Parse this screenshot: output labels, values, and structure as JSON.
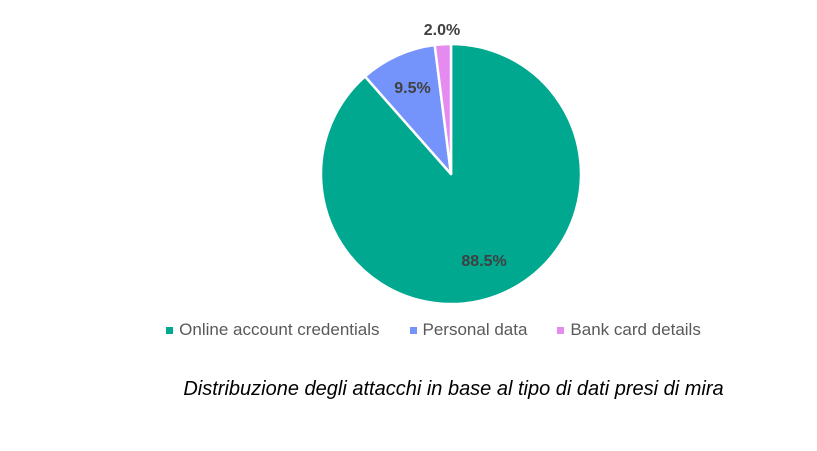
{
  "chart_data": {
    "type": "pie",
    "title": "",
    "slices": [
      {
        "label": "Online account credentials",
        "value": 88.5,
        "display": "88.5%",
        "color": "#00a88f"
      },
      {
        "label": "Personal data",
        "value": 9.5,
        "display": "9.5%",
        "color": "#7494fb"
      },
      {
        "label": "Bank card details",
        "value": 2.0,
        "display": "2.0%",
        "color": "#e58bf0"
      }
    ],
    "legend_position": "bottom",
    "start_angle_deg": 0,
    "direction": "clockwise"
  },
  "caption": "Distribuzione degli attacchi in base al tipo di dati presi di mira"
}
